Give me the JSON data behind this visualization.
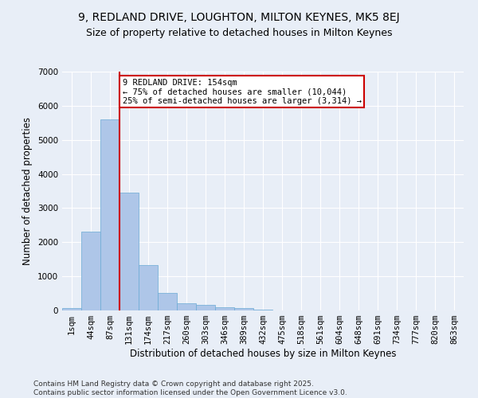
{
  "title_line1": "9, REDLAND DRIVE, LOUGHTON, MILTON KEYNES, MK5 8EJ",
  "title_line2": "Size of property relative to detached houses in Milton Keynes",
  "xlabel": "Distribution of detached houses by size in Milton Keynes",
  "ylabel": "Number of detached properties",
  "bin_labels": [
    "1sqm",
    "44sqm",
    "87sqm",
    "131sqm",
    "174sqm",
    "217sqm",
    "260sqm",
    "303sqm",
    "346sqm",
    "389sqm",
    "432sqm",
    "475sqm",
    "518sqm",
    "561sqm",
    "604sqm",
    "648sqm",
    "691sqm",
    "734sqm",
    "777sqm",
    "820sqm",
    "863sqm"
  ],
  "bar_values": [
    80,
    2300,
    5600,
    3450,
    1320,
    520,
    210,
    170,
    95,
    60,
    30,
    10,
    5,
    3,
    2,
    1,
    1,
    1,
    0,
    0,
    0
  ],
  "bar_color": "#aec6e8",
  "bar_edgecolor": "#6aaad4",
  "vline_color": "#cc0000",
  "annotation_text": "9 REDLAND DRIVE: 154sqm\n← 75% of detached houses are smaller (10,044)\n25% of semi-detached houses are larger (3,314) →",
  "annotation_box_color": "#cc0000",
  "annotation_text_color": "#000000",
  "ylim": [
    0,
    7000
  ],
  "yticks": [
    0,
    1000,
    2000,
    3000,
    4000,
    5000,
    6000,
    7000
  ],
  "bg_color": "#e8eef7",
  "plot_bg_color": "#e8eef7",
  "footer_line1": "Contains HM Land Registry data © Crown copyright and database right 2025.",
  "footer_line2": "Contains public sector information licensed under the Open Government Licence v3.0.",
  "title_fontsize": 10,
  "subtitle_fontsize": 9,
  "axis_label_fontsize": 8.5,
  "tick_fontsize": 7.5,
  "annotation_fontsize": 7.5,
  "footer_fontsize": 6.5
}
